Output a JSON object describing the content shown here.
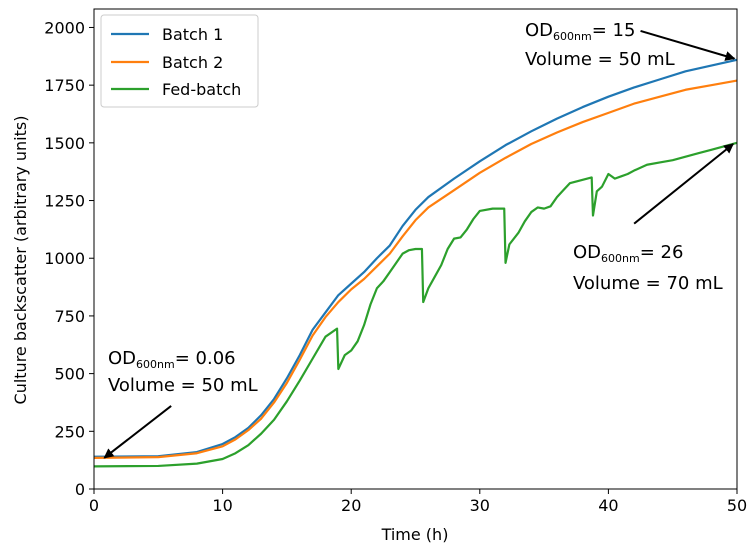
{
  "chart_data": {
    "type": "line",
    "xlabel": "Time (h)",
    "ylabel": "Culture backscatter (arbitrary units)",
    "xlim": [
      0,
      50
    ],
    "ylim": [
      0,
      2080
    ],
    "xticks": [
      0,
      10,
      20,
      30,
      40,
      50
    ],
    "yticks": [
      0,
      250,
      500,
      750,
      1000,
      1250,
      1500,
      1750,
      2000
    ],
    "xtick_labels": [
      "0",
      "10",
      "20",
      "30",
      "40",
      "50"
    ],
    "ytick_labels": [
      "0",
      "250",
      "500",
      "750",
      "1000",
      "1250",
      "1500",
      "1750",
      "2000"
    ],
    "grid": false,
    "legend_position": "top-left",
    "series": [
      {
        "name": "Batch 1",
        "color": "#1f77b4",
        "x": [
          0,
          5,
          8,
          10,
          11,
          12,
          13,
          14,
          15,
          16,
          17,
          18,
          19,
          20,
          21,
          22,
          23,
          24,
          25,
          26,
          28,
          30,
          32,
          34,
          36,
          38,
          40,
          42,
          44,
          46,
          48,
          50
        ],
        "y": [
          140,
          142,
          160,
          195,
          225,
          265,
          320,
          390,
          480,
          580,
          690,
          765,
          840,
          890,
          940,
          1000,
          1055,
          1140,
          1210,
          1265,
          1345,
          1420,
          1490,
          1550,
          1605,
          1655,
          1700,
          1740,
          1775,
          1810,
          1835,
          1860
        ]
      },
      {
        "name": "Batch 2",
        "color": "#ff7f0e",
        "x": [
          0,
          5,
          8,
          10,
          11,
          12,
          13,
          14,
          15,
          16,
          17,
          18,
          19,
          20,
          21,
          22,
          23,
          24,
          25,
          26,
          28,
          30,
          32,
          34,
          36,
          38,
          40,
          42,
          44,
          46,
          48,
          50
        ],
        "y": [
          135,
          138,
          155,
          185,
          215,
          255,
          305,
          375,
          460,
          560,
          665,
          745,
          810,
          865,
          910,
          965,
          1020,
          1095,
          1165,
          1220,
          1295,
          1370,
          1435,
          1495,
          1545,
          1590,
          1630,
          1670,
          1700,
          1730,
          1750,
          1770
        ]
      },
      {
        "name": "Fed-batch",
        "color": "#2ca02c",
        "x": [
          0,
          5,
          8,
          10,
          11,
          12,
          13,
          14,
          15,
          16,
          17,
          18,
          18.9,
          19.0,
          19.5,
          20,
          20.5,
          21,
          21.5,
          22,
          22.5,
          23,
          23.5,
          24,
          24.5,
          25,
          25.5,
          25.6,
          26,
          26.5,
          27,
          27.5,
          28,
          28.5,
          29,
          29.5,
          30,
          31,
          31.9,
          32.0,
          32.3,
          33,
          33.5,
          34,
          34.5,
          35,
          35.5,
          36,
          36.5,
          37,
          38,
          38.7,
          38.8,
          39.1,
          39.5,
          40,
          40.5,
          41,
          41.5,
          42,
          43,
          44,
          45,
          46,
          47,
          48,
          49,
          50
        ],
        "y": [
          98,
          100,
          110,
          130,
          155,
          190,
          240,
          300,
          380,
          470,
          565,
          660,
          695,
          520,
          580,
          600,
          640,
          710,
          800,
          870,
          900,
          940,
          980,
          1020,
          1035,
          1040,
          1040,
          810,
          870,
          920,
          970,
          1040,
          1085,
          1090,
          1125,
          1170,
          1205,
          1215,
          1215,
          980,
          1060,
          1110,
          1160,
          1200,
          1220,
          1215,
          1225,
          1265,
          1295,
          1325,
          1340,
          1350,
          1185,
          1290,
          1310,
          1365,
          1345,
          1355,
          1365,
          1380,
          1405,
          1415,
          1425,
          1440,
          1455,
          1470,
          1485,
          1500
        ]
      }
    ],
    "annotations": [
      {
        "lines": [
          "OD",
          "600nm",
          "= 0.06"
        ],
        "line2": "Volume = 50 mL",
        "arrow_to": [
          0.8,
          135
        ],
        "arrow_from": [
          6,
          360
        ]
      },
      {
        "lines": [
          "OD",
          "600nm",
          "= 15"
        ],
        "line2": "Volume = 50 mL",
        "arrow_to": [
          49.8,
          1865
        ],
        "arrow_from": [
          42.5,
          1985
        ]
      },
      {
        "lines": [
          "OD",
          "600nm",
          "= 26"
        ],
        "line2": "Volume = 70 mL",
        "arrow_to": [
          49.7,
          1495
        ],
        "arrow_from": [
          42,
          1150
        ]
      }
    ]
  }
}
